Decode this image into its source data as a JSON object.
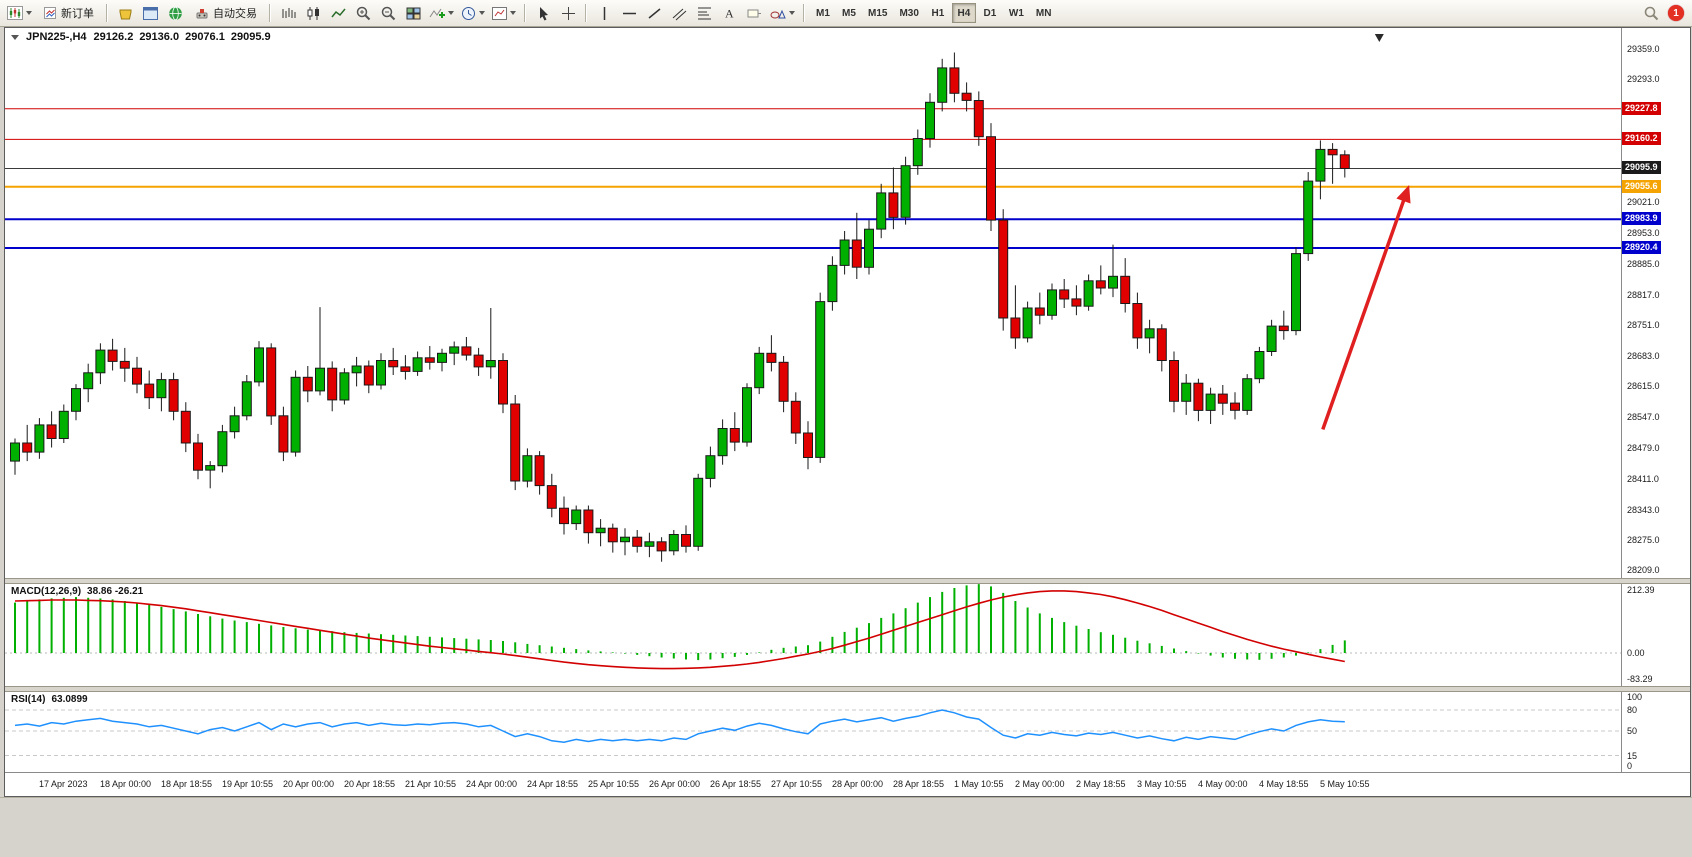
{
  "toolbar": {
    "new_order_label": "新订单",
    "autotrading_label": "自动交易",
    "timeframes": [
      "M1",
      "M5",
      "M15",
      "M30",
      "H1",
      "H4",
      "D1",
      "W1",
      "MN"
    ],
    "active_timeframe": "H4",
    "notification_count": "1"
  },
  "chart": {
    "symbol_period": "JPN225-,H4",
    "open": "29126.2",
    "high": "29136.0",
    "low": "29076.1",
    "close": "29095.9",
    "price_axis": [
      "29359.0",
      "29293.0",
      "29021.0",
      "28953.0",
      "28885.0",
      "28817.0",
      "28751.0",
      "28683.0",
      "28615.0",
      "28547.0",
      "28479.0",
      "28411.0",
      "28343.0",
      "28275.0",
      "28209.0"
    ],
    "levels": [
      {
        "label": "29227.8",
        "value": 29227.8,
        "line_color": "#d20000",
        "line_width": 1,
        "tag_bg": "#d20000",
        "tag_fg": "#ffffff",
        "role": "resistance"
      },
      {
        "label": "29160.2",
        "value": 29160.2,
        "line_color": "#d20000",
        "line_width": 1,
        "tag_bg": "#d20000",
        "tag_fg": "#ffffff",
        "role": "resistance"
      },
      {
        "label": "29095.9",
        "value": 29095.9,
        "line_color": "#3a3a3a",
        "line_width": 1,
        "tag_bg": "#1a1a1a",
        "tag_fg": "#ffffff",
        "role": "last-price"
      },
      {
        "label": "29055.6",
        "value": 29055.6,
        "line_color": "#f5a300",
        "line_width": 2,
        "tag_bg": "#f5a300",
        "tag_fg": "#ffffff",
        "role": "level"
      },
      {
        "label": "28983.9",
        "value": 28983.9,
        "line_color": "#0000cc",
        "line_width": 2,
        "tag_bg": "#0000cc",
        "tag_fg": "#ffffff",
        "role": "support"
      },
      {
        "label": "28920.4",
        "value": 28920.4,
        "line_color": "#0000cc",
        "line_width": 2,
        "tag_bg": "#0000cc",
        "tag_fg": "#ffffff",
        "role": "support"
      }
    ],
    "annotation": {
      "type": "trend-arrow",
      "direction": "up-right",
      "color": "#e02020"
    }
  },
  "macd_panel": {
    "title": "MACD(12,26,9)",
    "values": "38.86 -26.21",
    "axis_labels": [
      "212.39",
      "0.00",
      "-83.29"
    ]
  },
  "rsi_panel": {
    "title": "RSI(14)",
    "value": "63.0899",
    "axis_labels": [
      "100",
      "80",
      "50",
      "15",
      "0"
    ],
    "levels": [
      80,
      50,
      15
    ]
  },
  "time_axis": [
    "17 Apr 2023",
    "18 Apr 00:00",
    "18 Apr 18:55",
    "19 Apr 10:55",
    "20 Apr 00:00",
    "20 Apr 18:55",
    "21 Apr 10:55",
    "24 Apr 00:00",
    "24 Apr 18:55",
    "25 Apr 10:55",
    "26 Apr 00:00",
    "26 Apr 18:55",
    "27 Apr 10:55",
    "28 Apr 00:00",
    "28 Apr 18:55",
    "1 May 10:55",
    "2 May 00:00",
    "2 May 18:55",
    "3 May 10:55",
    "4 May 00:00",
    "4 May 18:55",
    "5 May 10:55"
  ],
  "chart_data": {
    "type": "candlestick",
    "symbol": "JPN225-",
    "timeframe": "H4",
    "title": "JPN225-,H4 29126.2 29136.0 29076.1 29095.9",
    "ylim": [
      28209,
      29359
    ],
    "colors": {
      "up": "#00b000",
      "down": "#e00000",
      "wick": "#1a1a1a",
      "outline": "#1a1a1a"
    },
    "candles": [
      [
        28450,
        28500,
        28420,
        28490
      ],
      [
        28490,
        28530,
        28450,
        28470
      ],
      [
        28470,
        28545,
        28455,
        28530
      ],
      [
        28530,
        28560,
        28480,
        28500
      ],
      [
        28500,
        28575,
        28490,
        28560
      ],
      [
        28560,
        28620,
        28540,
        28610
      ],
      [
        28610,
        28665,
        28580,
        28645
      ],
      [
        28645,
        28710,
        28620,
        28695
      ],
      [
        28695,
        28720,
        28650,
        28670
      ],
      [
        28670,
        28700,
        28625,
        28655
      ],
      [
        28655,
        28680,
        28600,
        28620
      ],
      [
        28620,
        28650,
        28565,
        28590
      ],
      [
        28590,
        28645,
        28560,
        28630
      ],
      [
        28630,
        28645,
        28540,
        28560
      ],
      [
        28560,
        28580,
        28470,
        28490
      ],
      [
        28490,
        28510,
        28410,
        28430
      ],
      [
        28430,
        28450,
        28390,
        28440
      ],
      [
        28440,
        28530,
        28425,
        28515
      ],
      [
        28515,
        28570,
        28500,
        28550
      ],
      [
        28550,
        28640,
        28540,
        28625
      ],
      [
        28625,
        28715,
        28615,
        28700
      ],
      [
        28700,
        28710,
        28530,
        28550
      ],
      [
        28550,
        28570,
        28450,
        28470
      ],
      [
        28470,
        28650,
        28460,
        28635
      ],
      [
        28635,
        28660,
        28580,
        28605
      ],
      [
        28605,
        28790,
        28595,
        28655
      ],
      [
        28655,
        28670,
        28560,
        28585
      ],
      [
        28585,
        28655,
        28575,
        28645
      ],
      [
        28645,
        28680,
        28615,
        28660
      ],
      [
        28660,
        28672,
        28600,
        28618
      ],
      [
        28618,
        28688,
        28608,
        28672
      ],
      [
        28672,
        28700,
        28640,
        28658
      ],
      [
        28658,
        28684,
        28630,
        28648
      ],
      [
        28648,
        28692,
        28638,
        28678
      ],
      [
        28678,
        28704,
        28652,
        28668
      ],
      [
        28668,
        28698,
        28648,
        28688
      ],
      [
        28688,
        28714,
        28662,
        28702
      ],
      [
        28702,
        28724,
        28672,
        28684
      ],
      [
        28684,
        28700,
        28638,
        28658
      ],
      [
        28658,
        28788,
        28632,
        28672
      ],
      [
        28672,
        28688,
        28556,
        28576
      ],
      [
        28576,
        28596,
        28386,
        28406
      ],
      [
        28406,
        28478,
        28392,
        28462
      ],
      [
        28462,
        28472,
        28376,
        28396
      ],
      [
        28396,
        28422,
        28326,
        28346
      ],
      [
        28346,
        28372,
        28288,
        28312
      ],
      [
        28312,
        28352,
        28298,
        28342
      ],
      [
        28342,
        28352,
        28268,
        28292
      ],
      [
        28292,
        28322,
        28262,
        28302
      ],
      [
        28302,
        28312,
        28248,
        28272
      ],
      [
        28272,
        28302,
        28242,
        28282
      ],
      [
        28282,
        28298,
        28248,
        28262
      ],
      [
        28262,
        28292,
        28238,
        28272
      ],
      [
        28272,
        28282,
        28228,
        28252
      ],
      [
        28252,
        28298,
        28242,
        28288
      ],
      [
        28288,
        28308,
        28248,
        28262
      ],
      [
        28262,
        28422,
        28252,
        28412
      ],
      [
        28412,
        28482,
        28392,
        28462
      ],
      [
        28462,
        28542,
        28442,
        28522
      ],
      [
        28522,
        28558,
        28472,
        28492
      ],
      [
        28492,
        28622,
        28482,
        28612
      ],
      [
        28612,
        28702,
        28598,
        28688
      ],
      [
        28688,
        28728,
        28648,
        28668
      ],
      [
        28668,
        28682,
        28558,
        28582
      ],
      [
        28582,
        28602,
        28488,
        28512
      ],
      [
        28512,
        28538,
        28432,
        28458
      ],
      [
        28458,
        28822,
        28446,
        28802
      ],
      [
        28802,
        28902,
        28782,
        28882
      ],
      [
        28882,
        28958,
        28862,
        28938
      ],
      [
        28938,
        28998,
        28852,
        28878
      ],
      [
        28878,
        28982,
        28862,
        28962
      ],
      [
        28962,
        29062,
        28942,
        29042
      ],
      [
        29042,
        29098,
        28962,
        28988
      ],
      [
        28988,
        29122,
        28972,
        29102
      ],
      [
        29102,
        29182,
        29082,
        29162
      ],
      [
        29162,
        29262,
        29142,
        29242
      ],
      [
        29242,
        29338,
        29222,
        29318
      ],
      [
        29318,
        29352,
        29242,
        29262
      ],
      [
        29262,
        29286,
        29222,
        29246
      ],
      [
        29246,
        29266,
        29146,
        29166
      ],
      [
        29166,
        29196,
        28958,
        28982
      ],
      [
        28982,
        29006,
        28738,
        28766
      ],
      [
        28766,
        28838,
        28698,
        28722
      ],
      [
        28722,
        28802,
        28712,
        28788
      ],
      [
        28788,
        28822,
        28752,
        28772
      ],
      [
        28772,
        28842,
        28762,
        28828
      ],
      [
        28828,
        28852,
        28788,
        28808
      ],
      [
        28808,
        28838,
        28772,
        28792
      ],
      [
        28792,
        28862,
        28782,
        28848
      ],
      [
        28848,
        28882,
        28818,
        28832
      ],
      [
        28832,
        28928,
        28812,
        28858
      ],
      [
        28858,
        28898,
        28778,
        28798
      ],
      [
        28798,
        28822,
        28698,
        28722
      ],
      [
        28722,
        28762,
        28688,
        28742
      ],
      [
        28742,
        28752,
        28648,
        28672
      ],
      [
        28672,
        28692,
        28558,
        28582
      ],
      [
        28582,
        28642,
        28552,
        28622
      ],
      [
        28622,
        28632,
        28538,
        28562
      ],
      [
        28562,
        28612,
        28532,
        28598
      ],
      [
        28598,
        28618,
        28552,
        28578
      ],
      [
        28578,
        28602,
        28542,
        28562
      ],
      [
        28562,
        28642,
        28552,
        28632
      ],
      [
        28632,
        28702,
        28622,
        28692
      ],
      [
        28692,
        28762,
        28682,
        28748
      ],
      [
        28748,
        28782,
        28718,
        28738
      ],
      [
        28738,
        28922,
        28728,
        28908
      ],
      [
        28908,
        29088,
        28892,
        29068
      ],
      [
        29068,
        29158,
        29028,
        29138
      ],
      [
        29138,
        29152,
        29062,
        29126
      ],
      [
        29126.2,
        29136.0,
        29076.1,
        29095.9
      ]
    ],
    "macd": {
      "histogram_color": "#00b000",
      "signal_color": "#d20000",
      "ylim": [
        -83.29,
        212.39
      ],
      "last_main": 38.86,
      "last_signal": -26.21,
      "histogram": [
        155,
        160,
        165,
        168,
        170,
        172,
        170,
        168,
        165,
        160,
        155,
        148,
        142,
        135,
        128,
        120,
        113,
        106,
        100,
        95,
        90,
        85,
        80,
        76,
        72,
        70,
        67,
        64,
        62,
        60,
        58,
        56,
        54,
        52,
        50,
        48,
        46,
        44,
        42,
        40,
        37,
        33,
        28,
        24,
        20,
        16,
        12,
        8,
        5,
        2,
        -2,
        -6,
        -10,
        -14,
        -17,
        -20,
        -22,
        -20,
        -16,
        -12,
        -6,
        2,
        10,
        16,
        20,
        24,
        35,
        50,
        65,
        78,
        92,
        108,
        122,
        138,
        155,
        172,
        188,
        200,
        208,
        212,
        205,
        185,
        160,
        140,
        122,
        108,
        95,
        84,
        74,
        64,
        56,
        47,
        38,
        30,
        22,
        14,
        6,
        -2,
        -8,
        -14,
        -18,
        -20,
        -21,
        -18,
        -14,
        -8,
        2,
        12,
        25,
        38.86
      ],
      "signal": [
        160,
        161,
        162,
        163,
        163,
        163,
        162,
        161,
        159,
        157,
        154,
        150,
        146,
        141,
        136,
        130,
        124,
        118,
        112,
        106,
        100,
        94,
        88,
        82,
        76,
        70,
        64,
        58,
        52,
        46,
        41,
        36,
        31,
        26,
        21,
        17,
        13,
        9,
        5,
        1,
        -3,
        -8,
        -13,
        -18,
        -23,
        -28,
        -32,
        -36,
        -39,
        -42,
        -44,
        -46,
        -47,
        -48,
        -48,
        -47,
        -46,
        -44,
        -41,
        -38,
        -34,
        -29,
        -23,
        -17,
        -10,
        -3,
        5,
        14,
        24,
        35,
        46,
        58,
        70,
        82,
        94,
        106,
        118,
        130,
        142,
        153,
        163,
        172,
        179,
        185,
        189,
        191,
        191,
        189,
        185,
        180,
        173,
        164,
        154,
        143,
        131,
        118,
        105,
        92,
        79,
        66,
        54,
        42,
        31,
        21,
        12,
        4,
        -4,
        -12,
        -19,
        -26.21
      ]
    },
    "rsi": {
      "color": "#1e90ff",
      "ylim": [
        0,
        100
      ],
      "last": 63.0899,
      "values": [
        58,
        60,
        57,
        62,
        60,
        64,
        66,
        68,
        64,
        62,
        60,
        56,
        58,
        54,
        50,
        46,
        52,
        55,
        50,
        56,
        62,
        52,
        60,
        56,
        60,
        62,
        56,
        60,
        62,
        58,
        61,
        59,
        58,
        60,
        59,
        61,
        62,
        60,
        56,
        58,
        50,
        42,
        46,
        42,
        36,
        34,
        38,
        35,
        38,
        36,
        38,
        36,
        38,
        36,
        40,
        38,
        46,
        50,
        54,
        51,
        57,
        61,
        58,
        53,
        49,
        46,
        60,
        64,
        67,
        63,
        66,
        69,
        64,
        68,
        71,
        76,
        80,
        76,
        70,
        67,
        55,
        44,
        40,
        46,
        44,
        48,
        45,
        43,
        47,
        45,
        48,
        44,
        40,
        43,
        39,
        36,
        41,
        38,
        42,
        40,
        38,
        44,
        49,
        53,
        50,
        58,
        63,
        66,
        64,
        63.09
      ]
    }
  }
}
